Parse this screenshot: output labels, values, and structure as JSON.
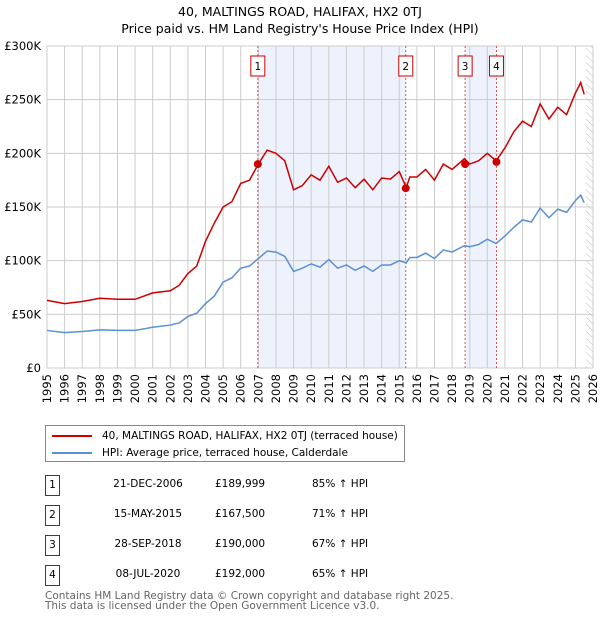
{
  "chart_data": {
    "type": "line",
    "title": "40, MALTINGS ROAD, HALIFAX, HX2 0TJ",
    "subtitle": "Price paid vs. HM Land Registry's House Price Index (HPI)",
    "xlim": [
      1995,
      2026
    ],
    "ylim": [
      0,
      300000
    ],
    "y_ticks": [
      {
        "v": 0,
        "label": "£0"
      },
      {
        "v": 50000,
        "label": "£50K"
      },
      {
        "v": 100000,
        "label": "£100K"
      },
      {
        "v": 150000,
        "label": "£150K"
      },
      {
        "v": 200000,
        "label": "£200K"
      },
      {
        "v": 250000,
        "label": "£250K"
      },
      {
        "v": 300000,
        "label": "£300K"
      }
    ],
    "x_ticks": [
      "1995",
      "1996",
      "1997",
      "1998",
      "1999",
      "2000",
      "2001",
      "2002",
      "2003",
      "2004",
      "2005",
      "2006",
      "2007",
      "2008",
      "2009",
      "2010",
      "2011",
      "2012",
      "2013",
      "2014",
      "2015",
      "2016",
      "2017",
      "2018",
      "2019",
      "2020",
      "2021",
      "2022",
      "2023",
      "2024",
      "2025",
      "2026"
    ],
    "grid": true,
    "shaded_periods": [
      [
        2006.97,
        2015.37
      ],
      [
        2018.74,
        2020.52
      ]
    ],
    "hatched_from": 2025.6,
    "x": [
      1995,
      1996,
      1997,
      1998,
      1999,
      2000,
      2001,
      2002,
      2002.5,
      2003,
      2003.5,
      2004,
      2004.5,
      2005,
      2005.5,
      2006,
      2006.5,
      2007,
      2007.5,
      2008,
      2008.5,
      2009,
      2009.5,
      2010,
      2010.5,
      2011,
      2011.5,
      2012,
      2012.5,
      2013,
      2013.5,
      2014,
      2014.5,
      2015,
      2015.4,
      2015.6,
      2016,
      2016.5,
      2017,
      2017.5,
      2018,
      2018.7,
      2019,
      2019.5,
      2020,
      2020.5,
      2021,
      2021.5,
      2022,
      2022.5,
      2023,
      2023.5,
      2024,
      2024.5,
      2025,
      2025.3,
      2025.5
    ],
    "series": [
      {
        "name": "40, MALTINGS ROAD, HALIFAX, HX2 0TJ (terraced house)",
        "color": "#cc0000",
        "values": [
          63000,
          60000,
          62000,
          65000,
          64000,
          64000,
          70000,
          72000,
          77000,
          88000,
          95000,
          118000,
          135000,
          150000,
          155000,
          172000,
          175000,
          190000,
          203000,
          200000,
          193000,
          166000,
          170000,
          180000,
          175000,
          188000,
          173000,
          177000,
          168000,
          176000,
          166000,
          177000,
          176000,
          183000,
          168000,
          178000,
          178000,
          185000,
          175000,
          190000,
          185000,
          195000,
          190000,
          193000,
          200000,
          193000,
          205000,
          220000,
          230000,
          225000,
          246000,
          232000,
          243000,
          236000,
          256000,
          266000,
          255000
        ]
      },
      {
        "name": "HPI: Average price, terraced house, Calderdale",
        "color": "#5b8fd4",
        "values": [
          35000,
          33000,
          34000,
          35500,
          35000,
          35000,
          38000,
          40000,
          42000,
          48000,
          51000,
          60000,
          67000,
          80000,
          84000,
          93000,
          95000,
          102000,
          109000,
          108000,
          104000,
          90000,
          93000,
          97000,
          94000,
          101000,
          93000,
          96000,
          91000,
          95000,
          90000,
          96000,
          96000,
          100000,
          98000,
          103000,
          103000,
          107000,
          102000,
          110000,
          108000,
          114000,
          113000,
          115000,
          120000,
          116000,
          123000,
          131000,
          138000,
          136000,
          149000,
          140000,
          148000,
          145000,
          156000,
          161000,
          154000
        ]
      }
    ],
    "sales": [
      {
        "id": "1",
        "date": "21-DEC-2006",
        "x": 2006.97,
        "price": 189999,
        "price_label": "£189,999",
        "hpi": "85% ↑ HPI"
      },
      {
        "id": "2",
        "date": "15-MAY-2015",
        "x": 2015.37,
        "price": 167500,
        "price_label": "£167,500",
        "hpi": "71% ↑ HPI"
      },
      {
        "id": "3",
        "date": "28-SEP-2018",
        "x": 2018.74,
        "price": 190000,
        "price_label": "£190,000",
        "hpi": "67% ↑ HPI"
      },
      {
        "id": "4",
        "date": "08-JUL-2020",
        "x": 2020.52,
        "price": 192000,
        "price_label": "£192,000",
        "hpi": "65% ↑ HPI"
      }
    ]
  },
  "legend": {
    "property": "40, MALTINGS ROAD, HALIFAX, HX2 0TJ (terraced house)",
    "hpi": "HPI: Average price, terraced house, Calderdale"
  },
  "footer": {
    "line1": "Contains HM Land Registry data © Crown copyright and database right 2025.",
    "line2": "This data is licensed under the Open Government Licence v3.0."
  }
}
